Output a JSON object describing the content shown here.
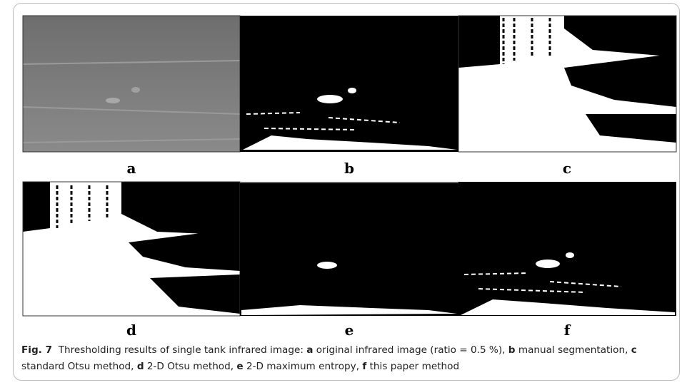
{
  "figure": {
    "panels": [
      {
        "label": "a"
      },
      {
        "label": "b"
      },
      {
        "label": "c"
      },
      {
        "label": "d"
      },
      {
        "label": "e"
      },
      {
        "label": "f"
      }
    ],
    "caption": [
      {
        "text": "Fig. 7",
        "bold": true
      },
      {
        "text": "  Thresholding results of single tank infrared image: ",
        "bold": false
      },
      {
        "text": "a",
        "bold": true
      },
      {
        "text": " original infrared image (ratio = 0.5 %), ",
        "bold": false
      },
      {
        "text": "b",
        "bold": true
      },
      {
        "text": " manual segmentation, ",
        "bold": false
      },
      {
        "text": "c",
        "bold": true
      },
      {
        "text": " standard Otsu method, ",
        "bold": false
      },
      {
        "text": "d",
        "bold": true
      },
      {
        "text": " 2-D Otsu method, ",
        "bold": false
      },
      {
        "text": "e",
        "bold": true
      },
      {
        "text": " 2-D maximum entropy, ",
        "bold": false
      },
      {
        "text": "f",
        "bold": true
      },
      {
        "text": " this paper method",
        "bold": false
      }
    ]
  }
}
